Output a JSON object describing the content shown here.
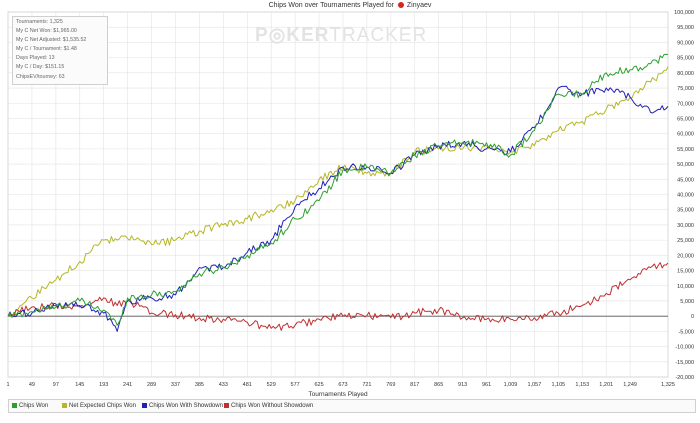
{
  "window": {
    "title": "Chips Won over Tournaments Played for",
    "player": "Zinyaev"
  },
  "watermark": {
    "part1": "P",
    "part2": "KER",
    "part3": "TRACKER"
  },
  "stats": [
    "Tournaments: 1,325",
    "My C Net Won: $1,965.00",
    "My C Net Adjusted: $1,535.52",
    "My C / Tournament: $1.48",
    "Days Played: 13",
    "My C / Day: $151.15",
    "ChipsEV/tourney: 63"
  ],
  "colors": {
    "chips_won": "#2ca02c",
    "net_expected": "#b6b626",
    "with_showdown": "#2020b8",
    "without_showdown": "#c03030"
  },
  "legend": [
    {
      "label": "Chips Won",
      "color": "#2ca02c"
    },
    {
      "label": "Net Expected Chips Won",
      "color": "#b6b626"
    },
    {
      "label": "Chips Won With Showdown",
      "color": "#2020b8"
    },
    {
      "label": "Chips Won Without Showdown",
      "color": "#c03030"
    }
  ],
  "chart_data": {
    "type": "line",
    "title": "Chips Won over Tournaments Played for Zinyaev",
    "xlabel": "Tournaments Played",
    "ylabel": "",
    "xlim": [
      1,
      1325
    ],
    "ylim": [
      -20000,
      100000
    ],
    "grid": true,
    "legend_position": "bottom",
    "x_ticks": [
      "1",
      "49",
      "97",
      "145",
      "193",
      "241",
      "289",
      "337",
      "385",
      "433",
      "481",
      "529",
      "577",
      "625",
      "673",
      "721",
      "769",
      "817",
      "865",
      "913",
      "961",
      "1,009",
      "1,057",
      "1,105",
      "1,153",
      "1,201",
      "1,249",
      "1,325"
    ],
    "y_ticks": [
      "100,000",
      "95,000",
      "90,000",
      "85,000",
      "80,000",
      "75,000",
      "70,000",
      "65,000",
      "60,000",
      "55,000",
      "50,000",
      "45,000",
      "40,000",
      "35,000",
      "30,000",
      "25,000",
      "20,000",
      "15,000",
      "10,000",
      "5,000",
      "0",
      "-5,000",
      "-10,000",
      "-15,000",
      "-20,000"
    ],
    "x": [
      1,
      49,
      97,
      145,
      193,
      220,
      241,
      289,
      337,
      385,
      433,
      481,
      529,
      577,
      625,
      673,
      721,
      769,
      817,
      865,
      913,
      961,
      1009,
      1057,
      1105,
      1153,
      1201,
      1249,
      1290,
      1325
    ],
    "series": [
      {
        "name": "Chips Won",
        "color": "#2ca02c",
        "values": [
          0,
          1500,
          3000,
          5000,
          2000,
          -3000,
          6000,
          7000,
          8000,
          14000,
          16000,
          20000,
          24000,
          32000,
          38000,
          48000,
          49000,
          47000,
          53000,
          56000,
          57000,
          57000,
          53000,
          61000,
          73000,
          73000,
          80000,
          81000,
          83000,
          86000
        ]
      },
      {
        "name": "Net Expected Chips Won",
        "color": "#b6b626",
        "values": [
          0,
          6000,
          12000,
          18000,
          25000,
          25000,
          25500,
          23500,
          25000,
          28000,
          30000,
          32000,
          35000,
          38000,
          45000,
          49000,
          47000,
          47000,
          54000,
          55000,
          55000,
          56000,
          54000,
          56000,
          61000,
          64000,
          68000,
          72000,
          77000,
          82000
        ]
      },
      {
        "name": "Chips Won With Showdown",
        "color": "#2020b8",
        "values": [
          0,
          1000,
          4000,
          3500,
          1000,
          -5000,
          5000,
          6000,
          7000,
          16000,
          16000,
          21000,
          25000,
          36000,
          42000,
          49000,
          49000,
          47000,
          53000,
          56000,
          57000,
          55000,
          54000,
          62000,
          75000,
          73000,
          75000,
          72000,
          67000,
          69000
        ]
      },
      {
        "name": "Chips Won Without Showdown",
        "color": "#c03030",
        "values": [
          0,
          3000,
          3500,
          3000,
          6000,
          3500,
          5000,
          1000,
          500,
          -500,
          -1000,
          -2000,
          -4000,
          -3000,
          -1000,
          0,
          200,
          -500,
          1000,
          2000,
          -500,
          -1000,
          -1000,
          -500,
          1000,
          3500,
          7500,
          12000,
          16000,
          17500
        ]
      }
    ]
  }
}
